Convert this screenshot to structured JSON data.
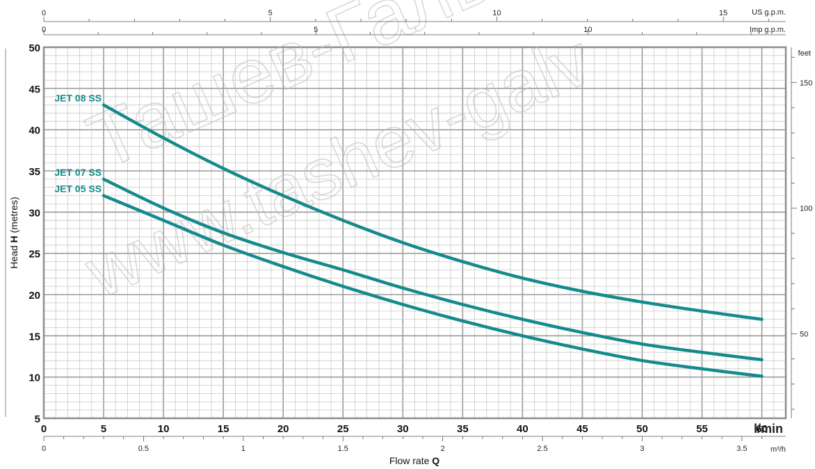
{
  "chart_data": {
    "type": "line",
    "colors": {
      "series": "#158a8c",
      "grid_major": "#9a9a9a",
      "grid_minor": "#c8c8c8",
      "label": "#158a8c"
    },
    "y_axis": {
      "label_prefix": "Head ",
      "label_bold": "H",
      "label_suffix": " (metres)",
      "range": [
        5,
        50
      ],
      "ticks": [
        "5",
        "10",
        "15",
        "20",
        "25",
        "30",
        "35",
        "40",
        "45",
        "50"
      ]
    },
    "x_axis": {
      "unit": "l/min",
      "range": [
        0,
        62
      ],
      "ticks": [
        "0",
        "5",
        "10",
        "15",
        "20",
        "25",
        "30",
        "35",
        "40",
        "45",
        "50",
        "55",
        "60"
      ]
    },
    "x_axis_m3h": {
      "unit": "m³/h",
      "ticks": [
        "0",
        "0.5",
        "1",
        "1.5",
        "2",
        "2.5",
        "3",
        "3.5"
      ],
      "tick_values": [
        0,
        0.5,
        1,
        1.5,
        2,
        2.5,
        3,
        3.5
      ]
    },
    "x_title_prefix": "Flow rate ",
    "x_title_bold": "Q",
    "top_axis_us": {
      "unit": "US g.p.m.",
      "ticks": [
        "0",
        "5",
        "10",
        "15"
      ],
      "tick_values": [
        0,
        5,
        10,
        15
      ]
    },
    "top_axis_imp": {
      "unit": "Imp g.p.m.",
      "ticks": [
        "0",
        "5",
        "10"
      ],
      "tick_values": [
        0,
        5,
        10
      ]
    },
    "right_axis": {
      "unit": "feet",
      "ticks": [
        "50",
        "100",
        "150"
      ],
      "tick_values": [
        50,
        100,
        150
      ]
    },
    "series": [
      {
        "name": "JET 08 SS",
        "x": [
          5,
          10,
          15,
          20,
          25,
          30,
          35,
          40,
          45,
          50,
          55,
          60
        ],
        "y": [
          43,
          39,
          35.3,
          32,
          29,
          26.3,
          24,
          22,
          20.4,
          19.1,
          18,
          17
        ]
      },
      {
        "name": "JET 07 SS",
        "x": [
          5,
          10,
          15,
          20,
          25,
          30,
          35,
          40,
          45,
          50,
          55,
          60
        ],
        "y": [
          34,
          30.5,
          27.5,
          25.1,
          23,
          20.8,
          18.8,
          17,
          15.4,
          14,
          13,
          12.1
        ]
      },
      {
        "name": "JET 05 SS",
        "x": [
          5,
          10,
          15,
          20,
          25,
          30,
          35,
          40,
          45,
          50,
          55,
          60
        ],
        "y": [
          32,
          29,
          26,
          23.4,
          21,
          18.8,
          16.8,
          15,
          13.4,
          12,
          11,
          10.1
        ]
      }
    ],
    "watermark": [
      "Ташев-Галв",
      "www.tashev-galv"
    ]
  }
}
